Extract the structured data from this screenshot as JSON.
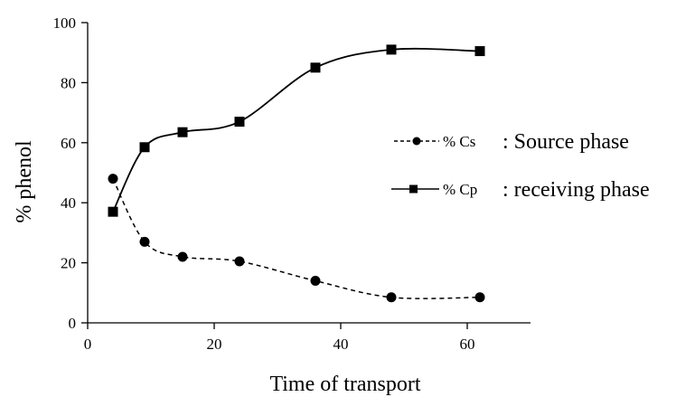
{
  "chart_data": {
    "type": "line",
    "xlabel": "Time of transport",
    "ylabel": "% phenol",
    "xlim": [
      0,
      70
    ],
    "ylim": [
      0,
      100
    ],
    "xticks": [
      0,
      20,
      40,
      60
    ],
    "yticks": [
      0,
      20,
      40,
      60,
      80,
      100
    ],
    "grid": false,
    "legend_position": "right",
    "series": [
      {
        "name": "% Cs",
        "description": ": Source phase",
        "marker": "circle",
        "line_style": "dashed",
        "color": "#000000",
        "x": [
          4,
          9,
          15,
          24,
          36,
          48,
          62
        ],
        "y": [
          48,
          27,
          22,
          20.5,
          14,
          8.5,
          8.5
        ]
      },
      {
        "name": "% Cp",
        "description": ": receiving phase",
        "marker": "square",
        "line_style": "solid",
        "color": "#000000",
        "x": [
          4,
          9,
          15,
          24,
          36,
          48,
          62
        ],
        "y": [
          37,
          58.5,
          63.5,
          67,
          85,
          91,
          90.5
        ]
      }
    ]
  }
}
